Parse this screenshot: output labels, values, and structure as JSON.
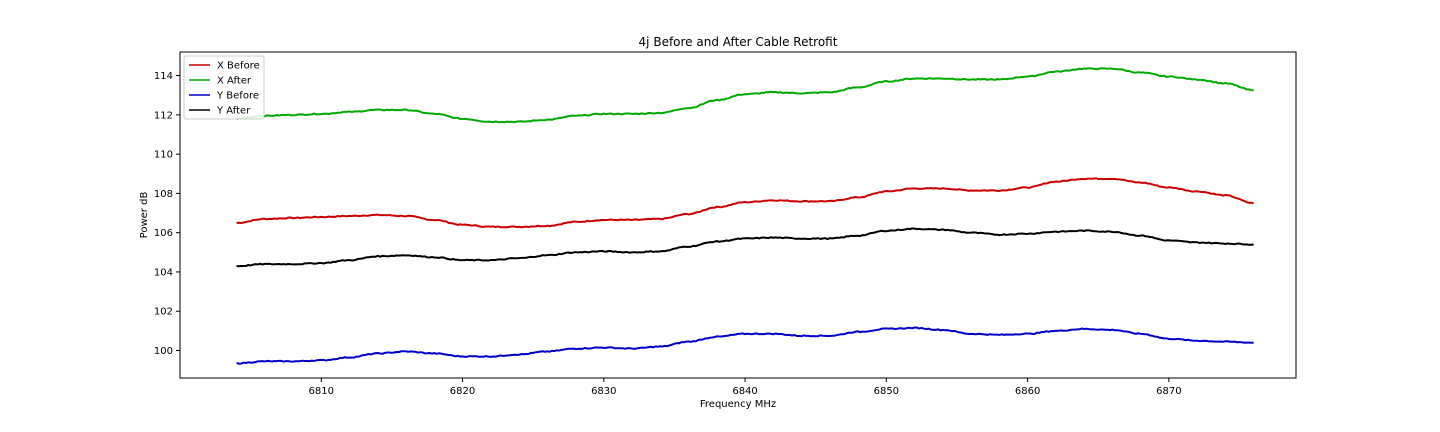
{
  "chart_data": {
    "type": "line",
    "title": "4j Before and After Cable Retrofit",
    "xlabel": "Frequency MHz",
    "ylabel": "Power dB",
    "xlim": [
      6800.0,
      6879.0
    ],
    "ylim": [
      98.6,
      115.2
    ],
    "xticks": [
      6810,
      6820,
      6830,
      6840,
      6850,
      6860,
      6870
    ],
    "yticks": [
      100,
      102,
      104,
      106,
      108,
      110,
      112,
      114
    ],
    "grid": false,
    "legend_position": "top-left",
    "x": [
      6804,
      6806,
      6808,
      6810,
      6812,
      6814,
      6816,
      6818,
      6820,
      6822,
      6824,
      6826,
      6828,
      6830,
      6832,
      6834,
      6836,
      6838,
      6840,
      6842,
      6844,
      6846,
      6848,
      6850,
      6852,
      6854,
      6856,
      6858,
      6860,
      6862,
      6864,
      6866,
      6868,
      6870,
      6872,
      6874,
      6876
    ],
    "series": [
      {
        "name": "X Before",
        "color": "#cc0000",
        "values": [
          106.5,
          106.7,
          106.75,
          106.8,
          106.85,
          106.9,
          106.85,
          106.65,
          106.4,
          106.3,
          106.3,
          106.35,
          106.55,
          106.65,
          106.65,
          106.7,
          106.95,
          107.3,
          107.55,
          107.65,
          107.6,
          107.6,
          107.8,
          108.1,
          108.25,
          108.25,
          108.15,
          108.15,
          108.3,
          108.6,
          108.75,
          108.75,
          108.55,
          108.3,
          108.1,
          107.9,
          107.5
        ]
      },
      {
        "name": "X After",
        "color": "#00aa00",
        "values": [
          111.8,
          111.95,
          112.0,
          112.05,
          112.15,
          112.25,
          112.25,
          112.05,
          111.8,
          111.65,
          111.65,
          111.75,
          111.95,
          112.05,
          112.05,
          112.1,
          112.35,
          112.75,
          113.05,
          113.15,
          113.1,
          113.15,
          113.4,
          113.7,
          113.85,
          113.85,
          113.8,
          113.8,
          113.95,
          114.2,
          114.35,
          114.35,
          114.15,
          113.95,
          113.8,
          113.6,
          113.25
        ]
      },
      {
        "name": "Y Before",
        "color": "#0000cc",
        "values": [
          99.35,
          99.45,
          99.45,
          99.5,
          99.65,
          99.85,
          99.95,
          99.85,
          99.7,
          99.7,
          99.8,
          99.95,
          100.1,
          100.15,
          100.1,
          100.2,
          100.45,
          100.7,
          100.85,
          100.85,
          100.75,
          100.75,
          100.95,
          101.1,
          101.15,
          101.05,
          100.85,
          100.8,
          100.85,
          101.0,
          101.1,
          101.05,
          100.85,
          100.6,
          100.5,
          100.45,
          100.4
        ]
      },
      {
        "name": "Y After",
        "color": "#000000",
        "values": [
          104.3,
          104.4,
          104.4,
          104.45,
          104.6,
          104.8,
          104.85,
          104.75,
          104.6,
          104.6,
          104.7,
          104.85,
          105.0,
          105.05,
          105.0,
          105.05,
          105.3,
          105.55,
          105.7,
          105.75,
          105.7,
          105.7,
          105.85,
          106.1,
          106.2,
          106.15,
          106.0,
          105.9,
          105.95,
          106.05,
          106.1,
          106.05,
          105.85,
          105.6,
          105.5,
          105.45,
          105.4
        ]
      }
    ]
  }
}
